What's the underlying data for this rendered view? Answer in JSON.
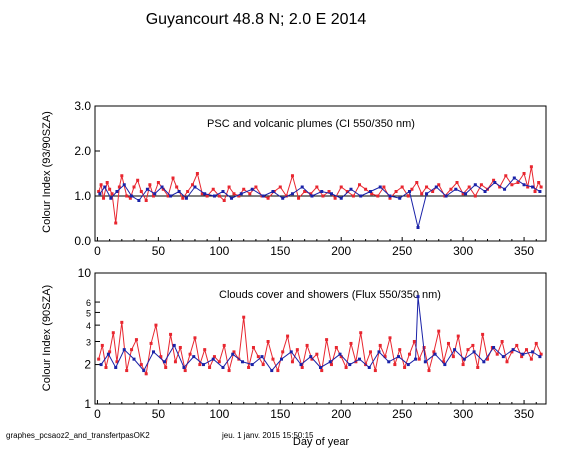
{
  "figure": {
    "title": "Guyancourt  48.8 N; 2.0 E   2014",
    "footer_left": "graphes_pcsaoz2_and_transfertpasOK2",
    "footer_mid": "jeu. 1 janv. 2015 15:50:15",
    "xlabel": "Day of year"
  },
  "colors": {
    "series_a": "#e8262f",
    "series_b": "#1a22a8",
    "axis": "#000000"
  },
  "chart_data": [
    {
      "type": "scatter",
      "title": "PSC and volcanic plumes (CI 550/350 nm)",
      "xlabel": "",
      "ylabel": "Colour Index (93/90SZA)",
      "xlim": [
        -2,
        368
      ],
      "ylim": [
        0.0,
        3.0
      ],
      "yscale": "linear",
      "xticks": [
        "0",
        "50",
        "100",
        "150",
        "200",
        "250",
        "300",
        "350"
      ],
      "yticks": [
        "0.0",
        "1.0",
        "2.0",
        "3.0"
      ],
      "reference_line": 1.0,
      "grid": false,
      "series": [
        {
          "color": "#e8262f",
          "x": [
            1,
            3,
            5,
            8,
            10,
            12,
            15,
            18,
            20,
            24,
            27,
            30,
            33,
            36,
            40,
            43,
            46,
            50,
            54,
            58,
            62,
            65,
            70,
            74,
            78,
            82,
            86,
            90,
            95,
            100,
            104,
            108,
            112,
            116,
            120,
            125,
            130,
            135,
            140,
            145,
            150,
            155,
            160,
            165,
            170,
            175,
            180,
            185,
            190,
            195,
            200,
            205,
            210,
            215,
            220,
            225,
            230,
            235,
            240,
            245,
            250,
            255,
            258,
            262,
            266,
            270,
            275,
            280,
            285,
            290,
            295,
            300,
            305,
            310,
            315,
            320,
            325,
            330,
            335,
            340,
            345,
            350,
            353,
            356,
            359,
            362,
            364
          ],
          "y": [
            1.1,
            1.25,
            0.95,
            1.3,
            1.15,
            1.05,
            0.4,
            1.2,
            1.45,
            1.0,
            0.95,
            1.2,
            1.35,
            1.1,
            0.9,
            1.25,
            1.0,
            1.3,
            1.15,
            1.0,
            1.4,
            1.2,
            0.95,
            1.1,
            1.25,
            1.5,
            1.05,
            1.0,
            1.15,
            1.0,
            0.9,
            1.2,
            1.05,
            1.0,
            1.15,
            1.05,
            1.2,
            1.0,
            0.95,
            1.1,
            1.2,
            1.0,
            1.45,
            0.95,
            1.1,
            1.05,
            1.2,
            1.0,
            1.1,
            0.95,
            1.2,
            1.1,
            1.0,
            1.25,
            1.15,
            1.05,
            1.0,
            1.2,
            0.95,
            1.1,
            1.2,
            1.0,
            1.15,
            1.3,
            1.05,
            1.2,
            1.1,
            1.25,
            1.0,
            1.15,
            1.3,
            1.05,
            1.2,
            1.0,
            1.25,
            1.15,
            1.35,
            1.2,
            1.45,
            1.25,
            1.3,
            1.5,
            1.2,
            1.65,
            1.1,
            1.3,
            1.2
          ]
        },
        {
          "color": "#1a22a8",
          "x": [
            2,
            6,
            11,
            16,
            22,
            28,
            34,
            41,
            47,
            53,
            60,
            67,
            73,
            80,
            88,
            96,
            103,
            110,
            118,
            127,
            136,
            144,
            152,
            160,
            168,
            176,
            184,
            192,
            200,
            208,
            216,
            224,
            232,
            240,
            248,
            256,
            263,
            270,
            278,
            286,
            294,
            302,
            310,
            318,
            326,
            334,
            342,
            350,
            357,
            363
          ],
          "y": [
            1.05,
            1.2,
            0.95,
            1.1,
            1.25,
            1.0,
            0.9,
            1.15,
            1.05,
            1.2,
            1.0,
            1.1,
            0.95,
            1.2,
            1.05,
            1.0,
            1.1,
            0.95,
            1.05,
            1.15,
            1.0,
            1.1,
            0.95,
            1.05,
            1.2,
            1.0,
            1.1,
            1.05,
            0.95,
            1.15,
            1.0,
            1.1,
            1.2,
            1.0,
            0.95,
            1.1,
            0.3,
            1.05,
            1.2,
            1.0,
            1.15,
            1.05,
            1.25,
            1.1,
            1.3,
            1.15,
            1.4,
            1.25,
            1.2,
            1.1
          ]
        }
      ]
    },
    {
      "type": "scatter",
      "title": "Clouds cover and showers (Flux 550/350 nm)",
      "xlabel": "Day of year",
      "ylabel": "Colour Index (90SZA)",
      "xlim": [
        -2,
        368
      ],
      "ylim": [
        1,
        10
      ],
      "yscale": "log",
      "xticks": [
        "0",
        "50",
        "100",
        "150",
        "200",
        "250",
        "300",
        "350"
      ],
      "yticks": [
        "1",
        "2",
        "3",
        "4",
        "5",
        "6",
        "10"
      ],
      "grid": false,
      "series": [
        {
          "color": "#e8262f",
          "x": [
            1,
            4,
            7,
            10,
            13,
            16,
            20,
            24,
            28,
            32,
            36,
            40,
            44,
            48,
            52,
            56,
            60,
            64,
            68,
            72,
            76,
            80,
            84,
            88,
            92,
            96,
            100,
            104,
            108,
            112,
            116,
            120,
            124,
            128,
            132,
            136,
            140,
            144,
            148,
            152,
            156,
            160,
            164,
            168,
            172,
            176,
            180,
            184,
            188,
            192,
            196,
            200,
            204,
            208,
            212,
            216,
            220,
            224,
            228,
            232,
            236,
            240,
            244,
            248,
            252,
            256,
            260,
            264,
            268,
            272,
            276,
            280,
            284,
            288,
            292,
            296,
            300,
            304,
            308,
            312,
            316,
            320,
            324,
            328,
            332,
            336,
            340,
            344,
            348,
            352,
            356,
            360,
            364
          ],
          "y": [
            2.2,
            2.8,
            1.9,
            2.5,
            3.5,
            2.1,
            4.2,
            1.8,
            2.6,
            3.1,
            2.0,
            1.7,
            2.9,
            4.0,
            2.3,
            1.9,
            3.4,
            2.1,
            2.7,
            1.8,
            2.4,
            3.2,
            2.0,
            2.6,
            1.9,
            2.3,
            2.1,
            2.8,
            1.8,
            2.5,
            2.2,
            4.6,
            1.9,
            2.7,
            2.3,
            2.0,
            3.0,
            2.2,
            1.8,
            2.5,
            3.3,
            2.1,
            2.6,
            1.9,
            2.8,
            2.2,
            2.4,
            1.8,
            3.1,
            2.0,
            2.7,
            2.3,
            1.9,
            2.9,
            2.1,
            3.5,
            2.0,
            2.5,
            1.8,
            2.8,
            2.3,
            3.2,
            2.0,
            2.6,
            1.9,
            2.4,
            3.0,
            2.2,
            2.7,
            1.8,
            2.5,
            3.6,
            2.1,
            2.9,
            2.3,
            3.3,
            2.0,
            2.6,
            2.8,
            1.9,
            3.4,
            2.2,
            2.7,
            2.4,
            3.0,
            2.1,
            2.5,
            2.8,
            2.3,
            2.6,
            2.2,
            2.9,
            2.4
          ]
        },
        {
          "color": "#1a22a8",
          "x": [
            3,
            9,
            15,
            22,
            30,
            38,
            46,
            55,
            63,
            71,
            79,
            87,
            95,
            103,
            111,
            119,
            127,
            135,
            143,
            151,
            159,
            167,
            175,
            183,
            191,
            199,
            207,
            215,
            223,
            231,
            239,
            247,
            255,
            261,
            263,
            269,
            277,
            285,
            293,
            301,
            309,
            317,
            325,
            333,
            341,
            349,
            357,
            363
          ],
          "y": [
            2.0,
            2.4,
            1.9,
            2.6,
            2.2,
            1.8,
            2.5,
            2.1,
            2.8,
            1.9,
            2.3,
            2.0,
            2.2,
            1.9,
            2.4,
            2.1,
            2.0,
            2.3,
            1.8,
            2.2,
            2.5,
            2.0,
            2.3,
            1.9,
            2.1,
            2.4,
            2.0,
            2.2,
            1.9,
            2.5,
            2.1,
            2.3,
            2.0,
            2.2,
            6.6,
            2.1,
            2.4,
            2.0,
            2.6,
            2.2,
            2.5,
            2.1,
            2.7,
            2.3,
            2.6,
            2.4,
            2.5,
            2.3
          ]
        }
      ]
    }
  ]
}
